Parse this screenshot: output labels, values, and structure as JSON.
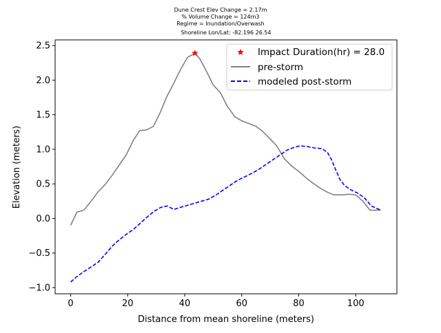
{
  "chart_data": {
    "type": "line",
    "title_lines": [
      "Dune Crest Elev Change = 2.17m",
      "% Volume Change = 124m3",
      "Regime = Inundation/Overwash",
      "Shoreline Lon/Lat: -82.196 26.54"
    ],
    "xlabel": "Distance from mean shoreline (meters)",
    "ylabel": "Elevation (meters)",
    "xlim": [
      -5.45,
      114.45
    ],
    "ylim": [
      -1.09,
      2.582
    ],
    "xticks": [
      0,
      20,
      40,
      60,
      80,
      100
    ],
    "yticks": [
      -1.0,
      -0.5,
      0.0,
      0.5,
      1.0,
      1.5,
      2.0,
      2.5
    ],
    "ytick_labels": [
      "−1.0",
      "−0.5",
      "0.0",
      "0.5",
      "1.0",
      "1.5",
      "2.0",
      "2.5"
    ],
    "legend_position": "upper right",
    "grid": false,
    "marker": {
      "name": "Impact Duration(hr) = 28.0",
      "x": 43.6,
      "y": 2.39,
      "color": "#ff0000",
      "symbol": "star"
    },
    "series": [
      {
        "name": "pre-storm",
        "color": "#808080",
        "style": "solid",
        "x": [
          0,
          2.2,
          4.6,
          7.0,
          9.7,
          12.1,
          14.5,
          17.0,
          19.5,
          22.0,
          24.2,
          26.6,
          29.0,
          31.3,
          33.7,
          36.1,
          38.5,
          41.0,
          43.6,
          45.3,
          47.5,
          50.0,
          52.5,
          55.0,
          57.6,
          60.1,
          62.7,
          65.1,
          67.6,
          70.0,
          72.3,
          75.0,
          77.5,
          80.0,
          82.5,
          85.0,
          87.5,
          90.0,
          92.3,
          95.0,
          97.5,
          100.0,
          102.5,
          105.0,
          108.8
        ],
        "y": [
          -0.1,
          0.09,
          0.12,
          0.24,
          0.39,
          0.49,
          0.62,
          0.77,
          0.92,
          1.13,
          1.27,
          1.28,
          1.33,
          1.52,
          1.76,
          1.95,
          2.15,
          2.33,
          2.39,
          2.31,
          2.14,
          1.93,
          1.82,
          1.62,
          1.47,
          1.41,
          1.37,
          1.33,
          1.25,
          1.15,
          1.05,
          0.86,
          0.76,
          0.68,
          0.59,
          0.51,
          0.44,
          0.38,
          0.34,
          0.34,
          0.35,
          0.34,
          0.25,
          0.12,
          0.12
        ]
      },
      {
        "name": "modeled post-storm",
        "color": "#0000ff",
        "style": "dashed",
        "x": [
          0,
          2.5,
          5.0,
          7.3,
          9.7,
          12.1,
          14.6,
          17.0,
          19.5,
          22.0,
          24.4,
          26.8,
          29.2,
          31.6,
          33.9,
          36.2,
          38.5,
          41.0,
          43.5,
          46.0,
          48.5,
          51.0,
          53.5,
          56.0,
          58.5,
          61.0,
          63.5,
          66.0,
          68.5,
          71.0,
          73.5,
          76.0,
          78.5,
          80.5,
          83.0,
          85.5,
          88.0,
          90.0,
          91.5,
          93.0,
          94.5,
          96.0,
          98.0,
          100.5,
          103.0,
          105.5,
          108.8
        ],
        "y": [
          -0.92,
          -0.83,
          -0.76,
          -0.7,
          -0.63,
          -0.52,
          -0.4,
          -0.31,
          -0.23,
          -0.16,
          -0.07,
          0.02,
          0.1,
          0.16,
          0.18,
          0.13,
          0.16,
          0.19,
          0.22,
          0.25,
          0.28,
          0.34,
          0.41,
          0.48,
          0.55,
          0.6,
          0.65,
          0.71,
          0.78,
          0.85,
          0.92,
          0.99,
          1.03,
          1.05,
          1.04,
          1.02,
          1.01,
          0.96,
          0.85,
          0.7,
          0.56,
          0.48,
          0.42,
          0.37,
          0.3,
          0.18,
          0.12
        ]
      }
    ]
  }
}
